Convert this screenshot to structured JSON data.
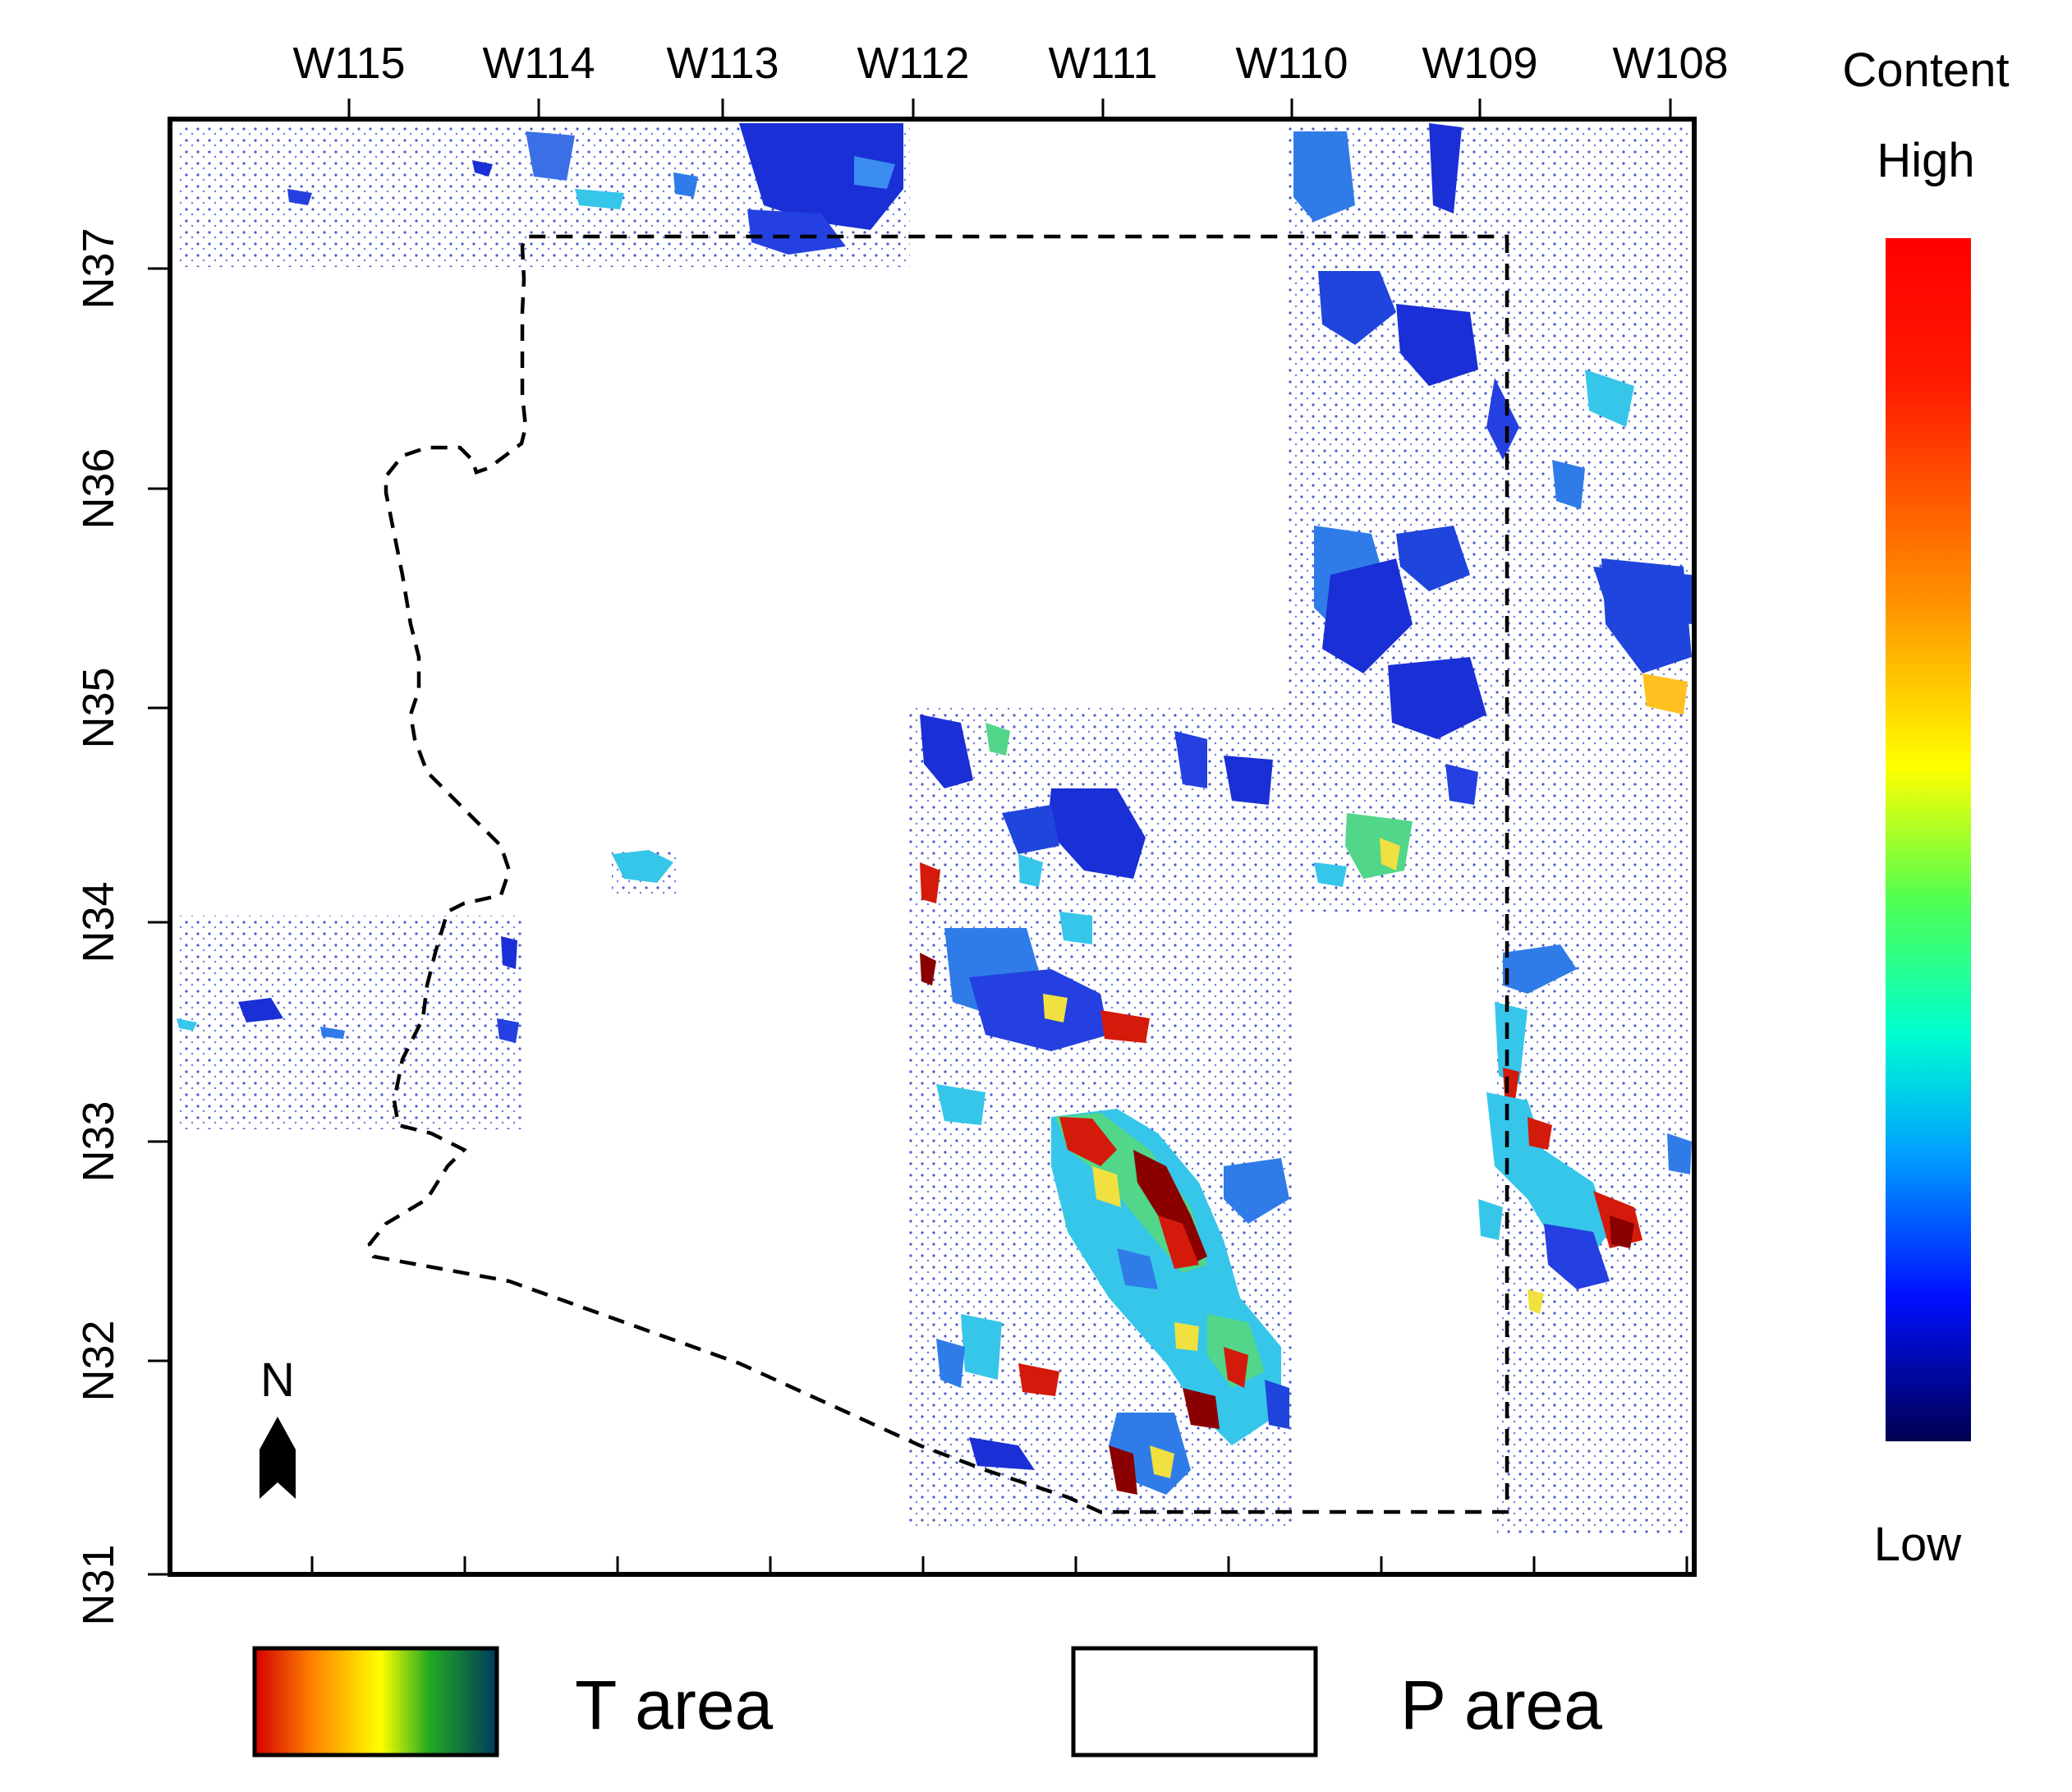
{
  "map": {
    "longitude_labels": [
      "W115",
      "W114",
      "W113",
      "W112",
      "W111",
      "W110",
      "W109",
      "W108"
    ],
    "latitude_labels": [
      "N37",
      "N36",
      "N35",
      "N34",
      "N33",
      "N32",
      "N31"
    ],
    "north_arrow_label": "N",
    "colorbar": {
      "title": "Content",
      "high_label": "High",
      "low_label": "Low",
      "colors": [
        "#7f0000",
        "#ff0000",
        "#ff8000",
        "#ffff00",
        "#40ff40",
        "#00ffff",
        "#0080ff",
        "#0000ff",
        "#00007f"
      ]
    },
    "legend": {
      "t_area_label": "T area",
      "p_area_label": "P area",
      "t_area_colors": [
        "#d40000",
        "#ff8800",
        "#ffff00",
        "#22aa22",
        "#003a5c"
      ]
    },
    "palette": {
      "blue_dark": "#1a2fd6",
      "blue_mid": "#2f7ce8",
      "cyan": "#36c6ea",
      "green": "#52d68a",
      "yellow": "#f0e040",
      "red": "#d41a0a",
      "dark_red": "#8a0000",
      "dot_blue": "#4b5bc8"
    }
  }
}
